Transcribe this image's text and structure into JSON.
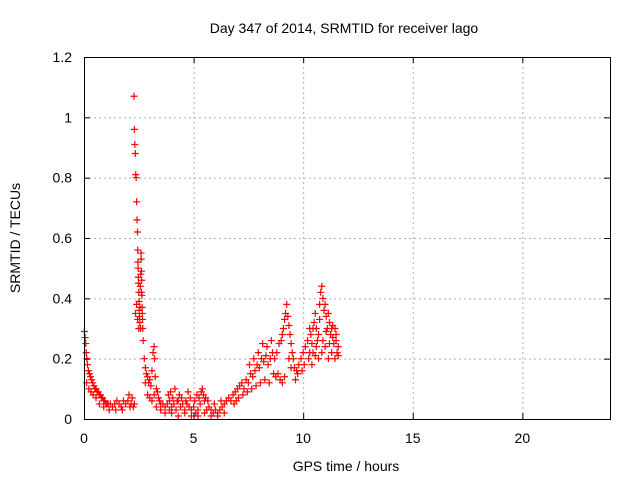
{
  "chart_data": {
    "type": "scatter",
    "title": "Day 347 of 2014, SRMTID for receiver lago",
    "xlabel": "GPS time / hours",
    "ylabel": "SRMTID / TECUs",
    "xlim": [
      0,
      24
    ],
    "ylim": [
      0,
      1.2
    ],
    "x_ticks": [
      0,
      5,
      10,
      15,
      20
    ],
    "x_tick_labels": [
      "0",
      "5",
      "10",
      "15",
      "20"
    ],
    "y_ticks": [
      0,
      0.2,
      0.4,
      0.6,
      0.8,
      1,
      1.2
    ],
    "y_tick_labels": [
      "0",
      "0.2",
      "0.4",
      "0.6",
      "0.8",
      "1",
      "1.2"
    ],
    "grid": true,
    "marker": "+",
    "colors": {
      "series": "#ff0000",
      "grid": "#b0b0b0",
      "axis": "#000000"
    },
    "series": [
      {
        "name": "SRMTID",
        "points": [
          [
            0.02,
            0.29
          ],
          [
            0.05,
            0.27
          ],
          [
            0.08,
            0.25
          ],
          [
            0.1,
            0.22
          ],
          [
            0.13,
            0.2
          ],
          [
            0.16,
            0.18
          ],
          [
            0.2,
            0.16
          ],
          [
            0.25,
            0.15
          ],
          [
            0.3,
            0.14
          ],
          [
            0.35,
            0.13
          ],
          [
            0.4,
            0.12
          ],
          [
            0.45,
            0.11
          ],
          [
            0.5,
            0.1
          ],
          [
            0.55,
            0.1
          ],
          [
            0.6,
            0.09
          ],
          [
            0.65,
            0.09
          ],
          [
            0.7,
            0.08
          ],
          [
            0.75,
            0.08
          ],
          [
            0.8,
            0.07
          ],
          [
            0.85,
            0.07
          ],
          [
            0.9,
            0.06
          ],
          [
            0.95,
            0.06
          ],
          [
            1.0,
            0.05
          ],
          [
            1.05,
            0.05
          ],
          [
            1.1,
            0.05
          ],
          [
            1.2,
            0.05
          ],
          [
            1.3,
            0.04
          ],
          [
            1.4,
            0.05
          ],
          [
            1.5,
            0.06
          ],
          [
            1.6,
            0.05
          ],
          [
            1.7,
            0.04
          ],
          [
            1.8,
            0.06
          ],
          [
            1.9,
            0.05
          ],
          [
            2.0,
            0.06
          ],
          [
            2.05,
            0.08
          ],
          [
            2.1,
            0.04
          ],
          [
            2.15,
            0.05
          ],
          [
            2.2,
            0.07
          ],
          [
            2.25,
            0.04
          ],
          [
            2.3,
            0.05
          ],
          [
            0.12,
            0.12
          ],
          [
            0.22,
            0.1
          ],
          [
            0.32,
            0.09
          ],
          [
            0.42,
            0.08
          ],
          [
            0.55,
            0.07
          ],
          [
            0.7,
            0.05
          ],
          [
            0.9,
            0.04
          ],
          [
            1.15,
            0.03
          ],
          [
            1.45,
            0.03
          ],
          [
            1.75,
            0.03
          ],
          [
            2.28,
            1.07
          ],
          [
            2.3,
            0.96
          ],
          [
            2.32,
            0.91
          ],
          [
            2.34,
            0.88
          ],
          [
            2.36,
            0.81
          ],
          [
            2.38,
            0.8
          ],
          [
            2.4,
            0.72
          ],
          [
            2.42,
            0.66
          ],
          [
            2.44,
            0.62
          ],
          [
            2.45,
            0.56
          ],
          [
            2.46,
            0.52
          ],
          [
            2.47,
            0.5
          ],
          [
            2.48,
            0.47
          ],
          [
            2.49,
            0.45
          ],
          [
            2.5,
            0.42
          ],
          [
            2.51,
            0.39
          ],
          [
            2.52,
            0.36
          ],
          [
            2.53,
            0.34
          ],
          [
            2.55,
            0.32
          ],
          [
            2.58,
            0.3
          ],
          [
            2.6,
            0.55
          ],
          [
            2.61,
            0.53
          ],
          [
            2.62,
            0.49
          ],
          [
            2.63,
            0.46
          ],
          [
            2.64,
            0.41
          ],
          [
            2.65,
            0.37
          ],
          [
            2.66,
            0.35
          ],
          [
            2.67,
            0.33
          ],
          [
            2.68,
            0.3
          ],
          [
            2.7,
            0.26
          ],
          [
            2.35,
            0.35
          ],
          [
            2.4,
            0.38
          ],
          [
            2.45,
            0.33
          ],
          [
            2.5,
            0.3
          ],
          [
            2.55,
            0.37
          ],
          [
            2.57,
            0.44
          ],
          [
            2.59,
            0.48
          ],
          [
            2.62,
            0.42
          ],
          [
            2.75,
            0.2
          ],
          [
            2.8,
            0.17
          ],
          [
            2.85,
            0.15
          ],
          [
            2.9,
            0.14
          ],
          [
            2.95,
            0.12
          ],
          [
            3.0,
            0.13
          ],
          [
            3.05,
            0.11
          ],
          [
            3.1,
            0.16
          ],
          [
            3.15,
            0.22
          ],
          [
            3.2,
            0.24
          ],
          [
            3.22,
            0.2
          ],
          [
            3.25,
            0.14
          ],
          [
            3.3,
            0.1
          ],
          [
            3.35,
            0.09
          ],
          [
            3.4,
            0.07
          ],
          [
            3.45,
            0.06
          ],
          [
            3.5,
            0.05
          ],
          [
            3.6,
            0.05
          ],
          [
            3.7,
            0.04
          ],
          [
            3.8,
            0.05
          ],
          [
            2.8,
            0.12
          ],
          [
            2.9,
            0.08
          ],
          [
            3.0,
            0.07
          ],
          [
            3.1,
            0.06
          ],
          [
            3.2,
            0.08
          ],
          [
            3.3,
            0.04
          ],
          [
            3.5,
            0.03
          ],
          [
            3.7,
            0.02
          ],
          [
            3.9,
            0.03
          ],
          [
            3.9,
            0.06
          ],
          [
            4.0,
            0.04
          ],
          [
            4.1,
            0.05
          ],
          [
            4.2,
            0.03
          ],
          [
            4.3,
            0.06
          ],
          [
            4.4,
            0.04
          ],
          [
            4.5,
            0.05
          ],
          [
            4.6,
            0.03
          ],
          [
            4.7,
            0.05
          ],
          [
            4.8,
            0.04
          ],
          [
            4.9,
            0.03
          ],
          [
            5.0,
            0.04
          ],
          [
            5.1,
            0.02
          ],
          [
            5.2,
            0.03
          ],
          [
            5.3,
            0.05
          ],
          [
            5.4,
            0.1
          ],
          [
            5.45,
            0.08
          ],
          [
            5.5,
            0.06
          ],
          [
            5.6,
            0.03
          ],
          [
            5.7,
            0.04
          ],
          [
            5.8,
            0.03
          ],
          [
            5.9,
            0.02
          ],
          [
            6.0,
            0.03
          ],
          [
            6.1,
            0.02
          ],
          [
            6.2,
            0.03
          ],
          [
            6.3,
            0.04
          ],
          [
            6.4,
            0.05
          ],
          [
            6.5,
            0.06
          ],
          [
            6.6,
            0.07
          ],
          [
            6.7,
            0.06
          ],
          [
            3.85,
            0.08
          ],
          [
            4.05,
            0.07
          ],
          [
            4.25,
            0.06
          ],
          [
            4.45,
            0.07
          ],
          [
            4.65,
            0.06
          ],
          [
            4.85,
            0.07
          ],
          [
            5.05,
            0.06
          ],
          [
            5.25,
            0.07
          ],
          [
            5.55,
            0.07
          ],
          [
            4.0,
            0.02
          ],
          [
            4.3,
            0.01
          ],
          [
            4.6,
            0.02
          ],
          [
            4.9,
            0.01
          ],
          [
            5.2,
            0.01
          ],
          [
            5.5,
            0.02
          ],
          [
            5.8,
            0.01
          ],
          [
            6.1,
            0.01
          ],
          [
            6.4,
            0.02
          ],
          [
            3.95,
            0.09
          ],
          [
            4.15,
            0.1
          ],
          [
            4.35,
            0.08
          ],
          [
            4.75,
            0.09
          ],
          [
            5.15,
            0.08
          ],
          [
            5.35,
            0.09
          ],
          [
            5.65,
            0.06
          ],
          [
            5.95,
            0.05
          ],
          [
            6.25,
            0.06
          ],
          [
            6.8,
            0.08
          ],
          [
            6.9,
            0.09
          ],
          [
            7.0,
            0.1
          ],
          [
            7.1,
            0.11
          ],
          [
            7.2,
            0.12
          ],
          [
            7.3,
            0.1
          ],
          [
            7.4,
            0.13
          ],
          [
            7.5,
            0.12
          ],
          [
            7.6,
            0.15
          ],
          [
            7.7,
            0.14
          ],
          [
            7.8,
            0.16
          ],
          [
            7.9,
            0.18
          ],
          [
            8.0,
            0.17
          ],
          [
            8.1,
            0.2
          ],
          [
            8.2,
            0.19
          ],
          [
            8.3,
            0.21
          ],
          [
            8.4,
            0.18
          ],
          [
            8.5,
            0.2
          ],
          [
            8.6,
            0.22
          ],
          [
            8.7,
            0.2
          ],
          [
            6.85,
            0.05
          ],
          [
            6.95,
            0.06
          ],
          [
            7.05,
            0.07
          ],
          [
            7.25,
            0.08
          ],
          [
            7.45,
            0.09
          ],
          [
            7.65,
            0.1
          ],
          [
            7.85,
            0.11
          ],
          [
            8.05,
            0.12
          ],
          [
            8.25,
            0.13
          ],
          [
            8.45,
            0.12
          ],
          [
            7.55,
            0.18
          ],
          [
            7.75,
            0.2
          ],
          [
            7.95,
            0.22
          ],
          [
            8.15,
            0.25
          ],
          [
            8.35,
            0.24
          ],
          [
            8.55,
            0.26
          ],
          [
            8.65,
            0.15
          ],
          [
            8.75,
            0.14
          ],
          [
            8.8,
            0.22
          ],
          [
            8.9,
            0.25
          ],
          [
            9.0,
            0.26
          ],
          [
            9.05,
            0.28
          ],
          [
            9.1,
            0.3
          ],
          [
            9.15,
            0.33
          ],
          [
            9.2,
            0.35
          ],
          [
            9.25,
            0.38
          ],
          [
            9.3,
            0.34
          ],
          [
            9.35,
            0.31
          ],
          [
            9.4,
            0.28
          ],
          [
            9.45,
            0.25
          ],
          [
            9.5,
            0.22
          ],
          [
            9.55,
            0.2
          ],
          [
            9.6,
            0.17
          ],
          [
            9.7,
            0.16
          ],
          [
            9.8,
            0.18
          ],
          [
            9.9,
            0.2
          ],
          [
            10.0,
            0.22
          ],
          [
            10.1,
            0.24
          ],
          [
            8.85,
            0.15
          ],
          [
            8.95,
            0.13
          ],
          [
            9.05,
            0.12
          ],
          [
            9.15,
            0.14
          ],
          [
            9.35,
            0.2
          ],
          [
            9.45,
            0.17
          ],
          [
            9.65,
            0.13
          ],
          [
            9.75,
            0.15
          ],
          [
            9.95,
            0.16
          ],
          [
            10.05,
            0.18
          ],
          [
            10.2,
            0.26
          ],
          [
            10.3,
            0.3
          ],
          [
            10.35,
            0.28
          ],
          [
            10.4,
            0.25
          ],
          [
            10.45,
            0.22
          ],
          [
            10.5,
            0.32
          ],
          [
            10.55,
            0.35
          ],
          [
            10.6,
            0.3
          ],
          [
            10.65,
            0.26
          ],
          [
            10.7,
            0.28
          ],
          [
            10.75,
            0.38
          ],
          [
            10.8,
            0.42
          ],
          [
            10.85,
            0.44
          ],
          [
            10.9,
            0.4
          ],
          [
            10.95,
            0.36
          ],
          [
            11.0,
            0.38
          ],
          [
            11.05,
            0.34
          ],
          [
            11.1,
            0.3
          ],
          [
            11.15,
            0.35
          ],
          [
            11.2,
            0.32
          ],
          [
            11.25,
            0.28
          ],
          [
            11.3,
            0.3
          ],
          [
            11.35,
            0.27
          ],
          [
            11.4,
            0.25
          ],
          [
            11.45,
            0.3
          ],
          [
            11.5,
            0.28
          ],
          [
            11.55,
            0.22
          ],
          [
            11.6,
            0.24
          ],
          [
            10.25,
            0.2
          ],
          [
            10.4,
            0.18
          ],
          [
            10.55,
            0.21
          ],
          [
            10.7,
            0.2
          ],
          [
            10.85,
            0.22
          ],
          [
            11.0,
            0.24
          ],
          [
            11.15,
            0.2
          ],
          [
            11.3,
            0.22
          ],
          [
            11.45,
            0.2
          ],
          [
            11.6,
            0.21
          ],
          [
            10.3,
            0.22
          ],
          [
            10.6,
            0.24
          ],
          [
            10.9,
            0.26
          ],
          [
            11.2,
            0.25
          ],
          [
            11.5,
            0.26
          ],
          [
            10.45,
            0.3
          ],
          [
            10.75,
            0.33
          ],
          [
            11.05,
            0.29
          ],
          [
            11.35,
            0.31
          ]
        ]
      }
    ]
  }
}
